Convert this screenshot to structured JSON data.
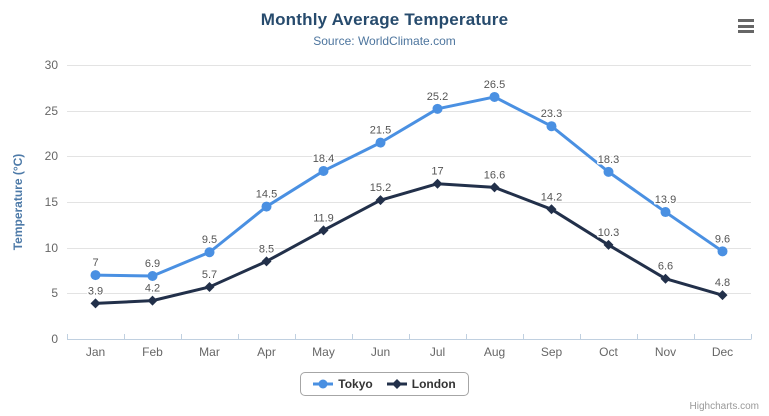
{
  "chart_data": {
    "type": "line",
    "title": "Monthly Average Temperature",
    "subtitle": "Source: WorldClimate.com",
    "categories": [
      "Jan",
      "Feb",
      "Mar",
      "Apr",
      "May",
      "Jun",
      "Jul",
      "Aug",
      "Sep",
      "Oct",
      "Nov",
      "Dec"
    ],
    "series": [
      {
        "name": "Tokyo",
        "color": "#4a90e2",
        "marker": "circle",
        "values": [
          7,
          6.9,
          9.5,
          14.5,
          18.4,
          21.5,
          25.2,
          26.5,
          23.3,
          18.3,
          13.9,
          9.6
        ]
      },
      {
        "name": "London",
        "color": "#22304a",
        "marker": "diamond",
        "values": [
          3.9,
          4.2,
          5.7,
          8.5,
          11.9,
          15.2,
          17,
          16.6,
          14.2,
          10.3,
          6.6,
          4.8
        ]
      }
    ],
    "xlabel": "",
    "ylabel": "Temperature (°C)",
    "ylim": [
      0,
      30
    ],
    "ytick_interval": 5,
    "grid": true,
    "legend_position": "bottom",
    "data_labels": true
  },
  "colors": {
    "title": "#274b6d",
    "subtitle": "#4d759e",
    "y_axis_title": "#4d7aa8",
    "axis_label": "#666666",
    "data_label": "#555555",
    "grid": "#e3e3e3",
    "axis_line": "#c0d0e0",
    "legend_text": "#333333",
    "legend_border": "#a6a6a6",
    "credits": "#999999",
    "menu_icon": "#666666",
    "background": "#ffffff"
  },
  "credits": {
    "label": "Highcharts.com"
  },
  "icons": {
    "context_menu": "hamburger-menu"
  }
}
